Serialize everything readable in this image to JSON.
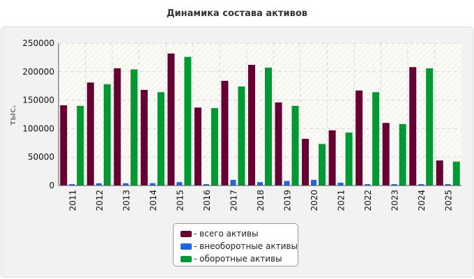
{
  "chart_data": {
    "type": "bar",
    "title": "Динамика состава активов",
    "ylabel": "тыс.",
    "xlabel": "",
    "ylim": [
      0,
      250000
    ],
    "yticks": [
      0,
      50000,
      100000,
      150000,
      200000,
      250000
    ],
    "categories": [
      "2011",
      "2012",
      "2013",
      "2014",
      "2015",
      "2016",
      "2017",
      "2018",
      "2019",
      "2020",
      "2021",
      "2022",
      "2023",
      "2024",
      "2025"
    ],
    "series": [
      {
        "name": "- всего активы",
        "color": "#660033",
        "values": [
          141000,
          181000,
          206000,
          168000,
          232000,
          137000,
          184000,
          212000,
          146000,
          82000,
          97000,
          167000,
          110000,
          208000,
          44000
        ]
      },
      {
        "name": "- внеоборотные активы",
        "color": "#1a66e6",
        "values": [
          2500,
          4000,
          4000,
          4000,
          6000,
          2500,
          10000,
          6000,
          8000,
          10000,
          5000,
          2500,
          2500,
          2500,
          2500
        ]
      },
      {
        "name": "- оборотные активы",
        "color": "#009933",
        "values": [
          140000,
          178000,
          204000,
          164000,
          226000,
          136000,
          174000,
          207000,
          140000,
          73000,
          93000,
          164000,
          108000,
          206000,
          42000
        ]
      }
    ],
    "grid": true,
    "legend_position": "bottom"
  }
}
